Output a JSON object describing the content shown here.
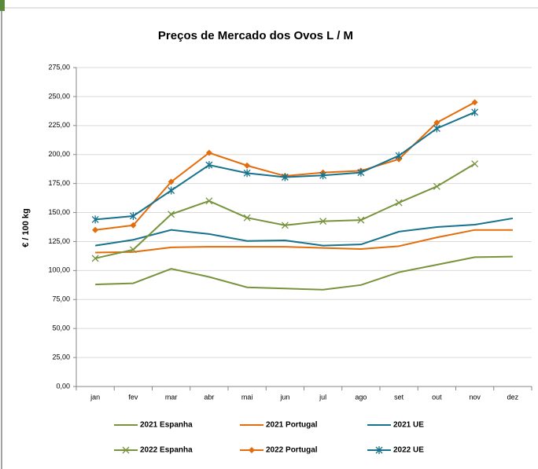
{
  "chart_data": {
    "type": "line",
    "title": "Preços de Mercado dos Ovos L / M",
    "y_label": "€ / 100 kg",
    "categories": [
      "jan",
      "fev",
      "mar",
      "abr",
      "mai",
      "jun",
      "jul",
      "ago",
      "set",
      "out",
      "nov",
      "dez"
    ],
    "series": [
      {
        "name": "2021 Espanha",
        "color": "#77933c",
        "marker": "none",
        "values": [
          88,
          89,
          101.5,
          94.5,
          85.5,
          84.5,
          83.5,
          87.5,
          98.5,
          105,
          111.5,
          112
        ]
      },
      {
        "name": "2021 Portugal",
        "color": "#e46c0a",
        "marker": "none",
        "values": [
          115.5,
          116,
          120,
          120.5,
          120.5,
          120.5,
          119.5,
          118.5,
          121,
          128.5,
          135,
          135
        ]
      },
      {
        "name": "2021 UE",
        "color": "#17728c",
        "marker": "none",
        "values": [
          121.5,
          126.5,
          135,
          131.5,
          125.5,
          126,
          121.5,
          122.5,
          133.5,
          137.5,
          139.5,
          145
        ]
      },
      {
        "name": "2022 Espanha",
        "color": "#77933c",
        "marker": "x",
        "values": [
          110.5,
          118,
          148.5,
          160,
          145.5,
          139,
          142.5,
          143.5,
          158.5,
          172.5,
          192,
          null
        ]
      },
      {
        "name": "2022 Portugal",
        "color": "#e46c0a",
        "marker": "diamond",
        "values": [
          135,
          139,
          176.5,
          201.5,
          190.5,
          181.5,
          184.5,
          186,
          196,
          227.5,
          245,
          null
        ]
      },
      {
        "name": "2022 UE",
        "color": "#17728c",
        "marker": "star",
        "values": [
          144,
          147,
          169,
          191,
          184,
          180.5,
          182,
          184.5,
          199,
          222.5,
          236.5,
          null
        ]
      }
    ],
    "ylim": [
      0,
      275
    ],
    "yticks": [
      {
        "value": 0,
        "label": "0,00"
      },
      {
        "value": 25,
        "label": "25,00"
      },
      {
        "value": 50,
        "label": "50,00"
      },
      {
        "value": 75,
        "label": "75,00"
      },
      {
        "value": 100,
        "label": "100,00"
      },
      {
        "value": 125,
        "label": "125,00"
      },
      {
        "value": 150,
        "label": "150,00"
      },
      {
        "value": 175,
        "label": "175,00"
      },
      {
        "value": 200,
        "label": "200,00"
      },
      {
        "value": 225,
        "label": "225,00"
      },
      {
        "value": 250,
        "label": "250,00"
      },
      {
        "value": 275,
        "label": "275,00"
      }
    ],
    "grid": true,
    "legend": "bottom"
  }
}
